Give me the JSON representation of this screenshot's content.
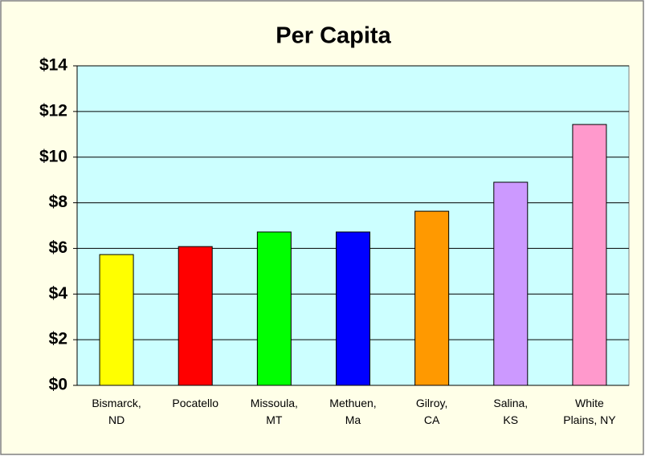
{
  "chart_data": {
    "type": "bar",
    "title": "Per Capita",
    "categories": [
      "Bismarck,\nND",
      "Pocatello",
      "Missoula,\nMT",
      "Methuen,\nMa",
      "Gilroy,\nCA",
      "Salina,\nKS",
      "White\nPlains, NY"
    ],
    "values": [
      5.73,
      6.08,
      6.72,
      6.72,
      7.63,
      8.9,
      11.43
    ],
    "colors": [
      "#ffff00",
      "#ff0000",
      "#00ff00",
      "#0000ff",
      "#ff9900",
      "#cc99ff",
      "#ff99cc"
    ],
    "ylim": [
      0,
      14
    ],
    "yticks": [
      {
        "value": 0,
        "label": "$0"
      },
      {
        "value": 2,
        "label": "$2"
      },
      {
        "value": 4,
        "label": "$4"
      },
      {
        "value": 6,
        "label": "$6"
      },
      {
        "value": 8,
        "label": "$8"
      },
      {
        "value": 10,
        "label": "$10"
      },
      {
        "value": 12,
        "label": "$12"
      },
      {
        "value": 14,
        "label": "$14"
      }
    ],
    "grid": true
  }
}
